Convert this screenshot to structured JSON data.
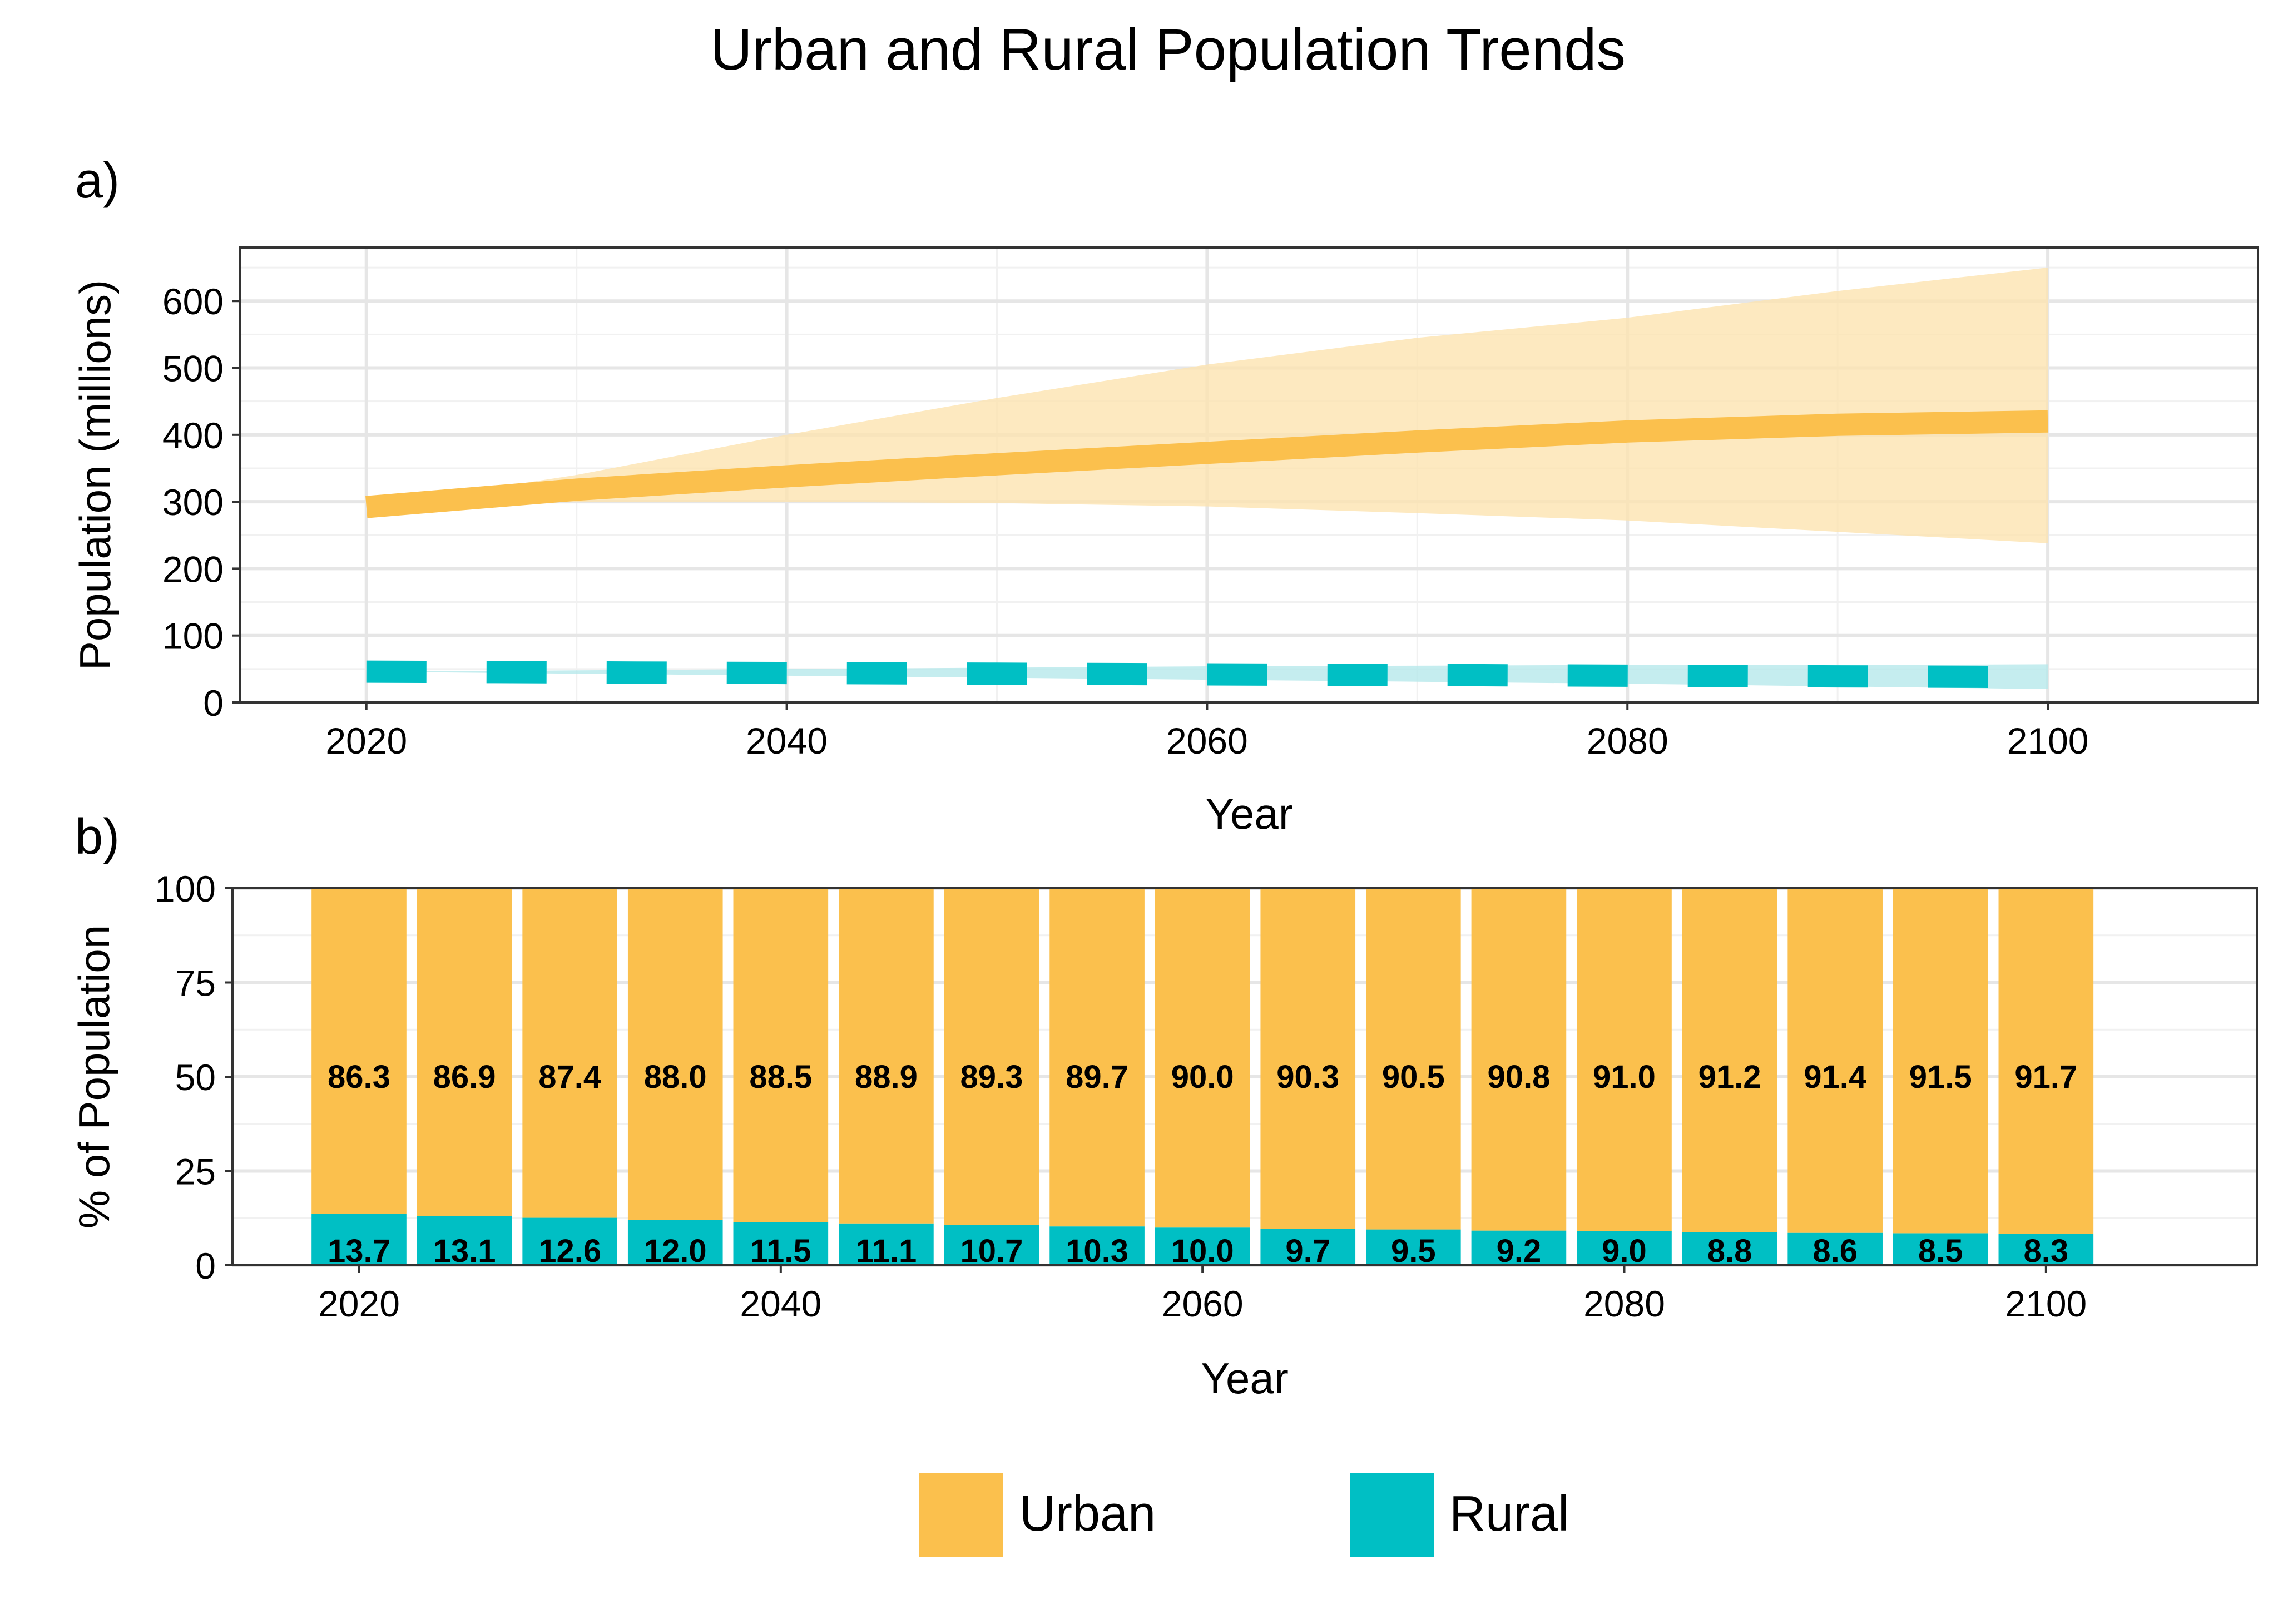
{
  "title": "Urban and Rural Population Trends",
  "colors": {
    "urban": "#FBC04D",
    "rural": "#00BFC4",
    "urban_band": "#FCE3B0",
    "rural_band": "#B7E9EB",
    "grid_major": "#E6E6E6",
    "grid_minor": "#F1F1F1",
    "axis": "#333333"
  },
  "chart_data": [
    {
      "panel": "a)",
      "type": "line",
      "xlabel": "Year",
      "ylabel": "Population (millions)",
      "xlim": [
        2014,
        2110
      ],
      "ylim": [
        0,
        680
      ],
      "x_ticks": [
        "2020",
        "2040",
        "2060",
        "2080",
        "2100"
      ],
      "y_ticks": [
        "0",
        "100",
        "200",
        "300",
        "400",
        "500",
        "600"
      ],
      "grid": true,
      "series": [
        {
          "name": "Urban",
          "style": "solid",
          "x": [
            2020,
            2030,
            2040,
            2050,
            2060,
            2070,
            2080,
            2090,
            2100
          ],
          "y": [
            292,
            318,
            338,
            356,
            373,
            390,
            405,
            415,
            420
          ],
          "lower": [
            292,
            300,
            300,
            298,
            293,
            283,
            272,
            255,
            238
          ],
          "upper": [
            292,
            340,
            400,
            455,
            505,
            545,
            575,
            615,
            650
          ]
        },
        {
          "name": "Rural",
          "style": "dashed",
          "x": [
            2020,
            2030,
            2040,
            2050,
            2060,
            2070,
            2080,
            2090,
            2100
          ],
          "y": [
            46,
            45,
            44,
            43,
            42,
            41,
            40,
            39,
            38
          ],
          "lower": [
            46,
            43,
            40,
            37,
            34,
            31,
            28,
            24,
            20
          ],
          "upper": [
            46,
            48,
            50,
            52,
            54,
            55,
            56,
            56,
            57
          ]
        }
      ]
    },
    {
      "panel": "b)",
      "type": "bar",
      "stacked": true,
      "xlabel": "Year",
      "ylabel": "% of Population",
      "xlim": [
        2014,
        2110
      ],
      "ylim": [
        0,
        100
      ],
      "x_ticks": [
        "2020",
        "2040",
        "2060",
        "2080",
        "2100"
      ],
      "y_ticks": [
        "0",
        "25",
        "50",
        "75",
        "100"
      ],
      "grid": true,
      "x": [
        2020,
        2025,
        2030,
        2035,
        2040,
        2045,
        2050,
        2055,
        2060,
        2065,
        2070,
        2075,
        2080,
        2085,
        2090,
        2095,
        2100
      ],
      "series": [
        {
          "name": "Rural",
          "values": [
            13.7,
            13.1,
            12.6,
            12.0,
            11.5,
            11.1,
            10.7,
            10.3,
            10.0,
            9.7,
            9.5,
            9.2,
            9.0,
            8.8,
            8.6,
            8.5,
            8.3
          ],
          "labels": [
            "13.7",
            "13.1",
            "12.6",
            "12.0",
            "11.5",
            "11.1",
            "10.7",
            "10.3",
            "10.0",
            "9.7",
            "9.5",
            "9.2",
            "9.0",
            "8.8",
            "8.6",
            "8.5",
            "8.3"
          ]
        },
        {
          "name": "Urban",
          "values": [
            86.3,
            86.9,
            87.4,
            88.0,
            88.5,
            88.9,
            89.3,
            89.7,
            90.0,
            90.3,
            90.5,
            90.8,
            91.0,
            91.2,
            91.4,
            91.5,
            91.7
          ],
          "labels": [
            "86.3",
            "86.9",
            "87.4",
            "88.0",
            "88.5",
            "88.9",
            "89.3",
            "89.7",
            "90.0",
            "90.3",
            "90.5",
            "90.8",
            "91.0",
            "91.2",
            "91.4",
            "91.5",
            "91.7"
          ]
        }
      ]
    }
  ],
  "legend": {
    "placement": "bottom",
    "items": [
      {
        "label": "Urban",
        "color": "#FBC04D"
      },
      {
        "label": "Rural",
        "color": "#00BFC4"
      }
    ]
  }
}
